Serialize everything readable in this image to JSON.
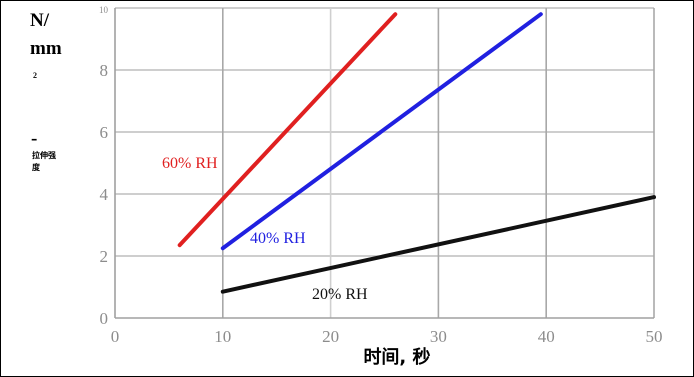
{
  "chart_data": {
    "type": "line",
    "title": "",
    "xlabel": "时间, 秒",
    "ylabel_lines": [
      "N/",
      "mm",
      "2",
      "-",
      "拉伸强",
      "度"
    ],
    "xlim": [
      0,
      50
    ],
    "ylim": [
      0,
      10
    ],
    "xticks": [
      0,
      10,
      20,
      30,
      40,
      50
    ],
    "yticks": [
      0,
      2,
      4,
      6,
      8,
      10
    ],
    "grid": true,
    "series": [
      {
        "name": "60% RH",
        "color": "#e02020",
        "x": [
          6,
          26
        ],
        "y": [
          2.35,
          9.8
        ]
      },
      {
        "name": "40% RH",
        "color": "#2020e0",
        "x": [
          10,
          39.5
        ],
        "y": [
          2.25,
          9.8
        ]
      },
      {
        "name": "20% RH",
        "color": "#111111",
        "x": [
          10,
          50
        ],
        "y": [
          0.85,
          3.9
        ]
      }
    ]
  }
}
